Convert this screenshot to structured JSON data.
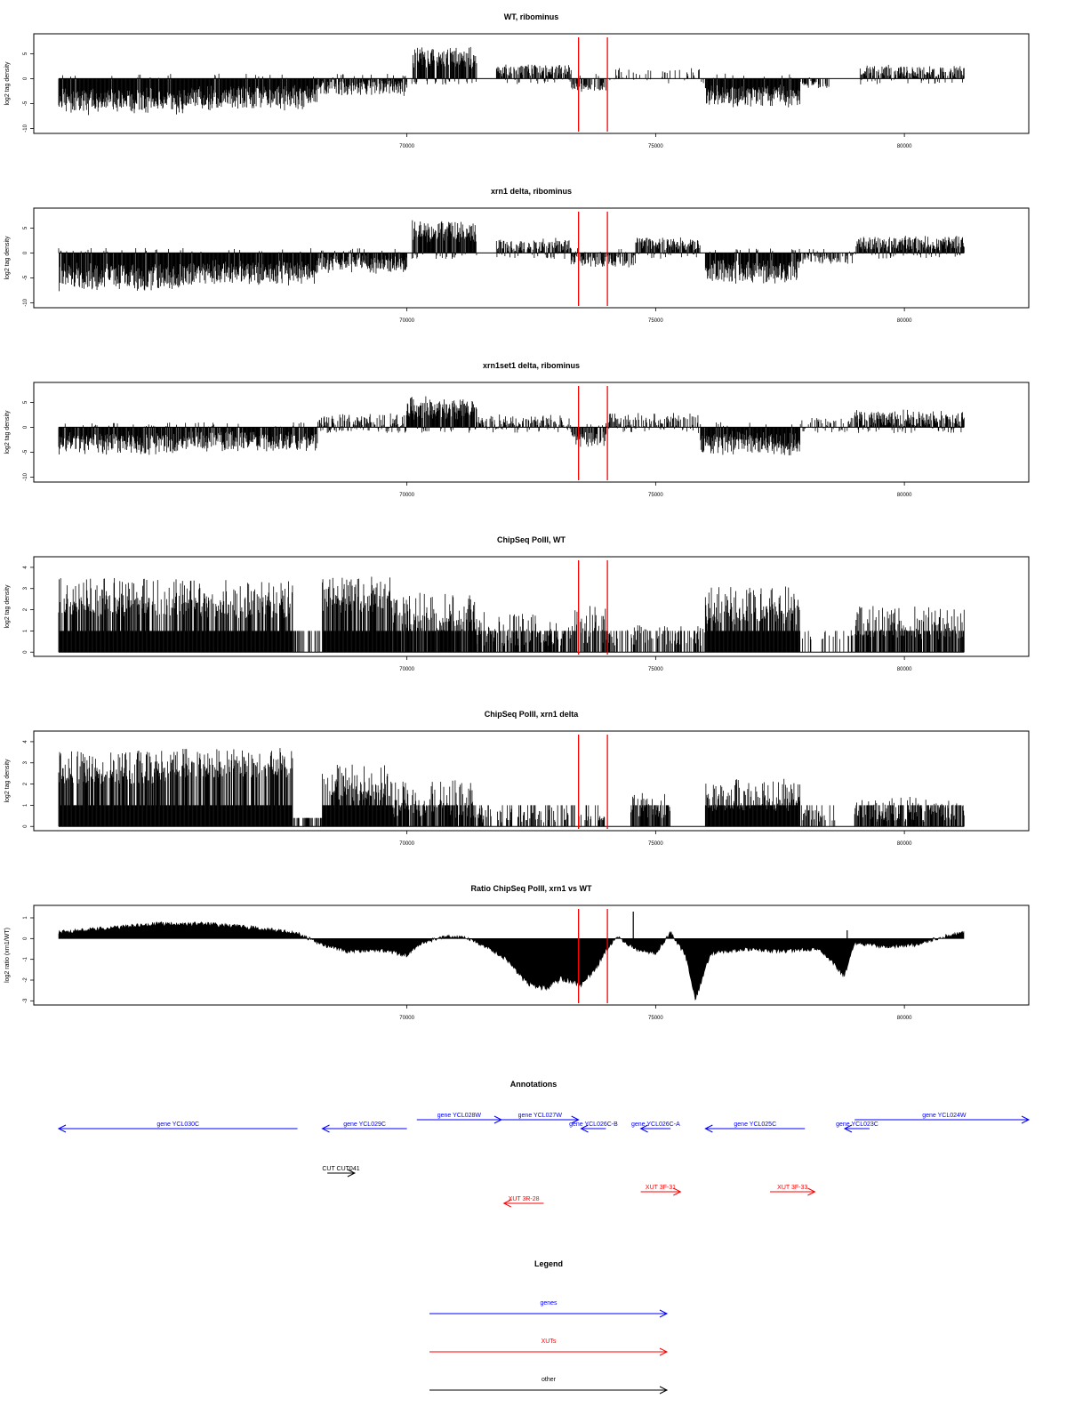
{
  "chart_data": [
    {
      "type": "bar",
      "title": "WT, ribominus",
      "ylabel": "log2 tag density",
      "xlim": [
        62500,
        82500
      ],
      "ylim": [
        -11,
        9
      ],
      "yticks": [
        -10,
        -5,
        0,
        5
      ],
      "xticks": [
        70000,
        75000,
        80000
      ],
      "markers_x": [
        73450,
        74030
      ],
      "segments": [
        {
          "start": 63000,
          "end": 65500,
          "level": -4.5,
          "amp": 3.0,
          "density": 1.0
        },
        {
          "start": 65500,
          "end": 68200,
          "level": -3.8,
          "amp": 2.8,
          "density": 1.0
        },
        {
          "start": 68200,
          "end": 70000,
          "level": -1.8,
          "amp": 1.8,
          "density": 0.85
        },
        {
          "start": 70100,
          "end": 71400,
          "level": 4.2,
          "amp": 2.3,
          "density": 1.0
        },
        {
          "start": 71800,
          "end": 73300,
          "level": 1.7,
          "amp": 1.4,
          "density": 0.8
        },
        {
          "start": 73300,
          "end": 74000,
          "level": -1.8,
          "amp": 1.0,
          "density": 0.6
        },
        {
          "start": 74000,
          "end": 76000,
          "level": 1.0,
          "amp": 1.5,
          "density": 0.25
        },
        {
          "start": 76000,
          "end": 77900,
          "level": -3.6,
          "amp": 2.5,
          "density": 1.0
        },
        {
          "start": 77900,
          "end": 78500,
          "level": -1.2,
          "amp": 0.8,
          "density": 0.5
        },
        {
          "start": 79100,
          "end": 81200,
          "level": 1.4,
          "amp": 1.4,
          "density": 0.75
        }
      ]
    },
    {
      "type": "bar",
      "title": "xrn1 delta, ribominus",
      "ylabel": "log2 tag density",
      "xlim": [
        62500,
        82500
      ],
      "ylim": [
        -11,
        9
      ],
      "yticks": [
        -10,
        -5,
        0,
        5
      ],
      "xticks": [
        70000,
        75000,
        80000
      ],
      "markers_x": [
        73450,
        74030
      ],
      "segments": [
        {
          "start": 63000,
          "end": 65500,
          "level": -4.8,
          "amp": 3.0,
          "density": 1.0
        },
        {
          "start": 65500,
          "end": 68200,
          "level": -4.0,
          "amp": 2.8,
          "density": 1.0
        },
        {
          "start": 68200,
          "end": 70000,
          "level": -2.2,
          "amp": 2.0,
          "density": 0.9
        },
        {
          "start": 70100,
          "end": 71400,
          "level": 4.2,
          "amp": 2.5,
          "density": 1.0
        },
        {
          "start": 71800,
          "end": 73300,
          "level": 1.5,
          "amp": 1.6,
          "density": 0.85
        },
        {
          "start": 73300,
          "end": 74600,
          "level": -1.6,
          "amp": 1.4,
          "density": 0.7
        },
        {
          "start": 74600,
          "end": 75900,
          "level": 1.8,
          "amp": 1.6,
          "density": 0.85
        },
        {
          "start": 76000,
          "end": 77900,
          "level": -3.8,
          "amp": 2.7,
          "density": 1.0
        },
        {
          "start": 77900,
          "end": 79000,
          "level": -1.0,
          "amp": 1.4,
          "density": 0.6
        },
        {
          "start": 79000,
          "end": 81200,
          "level": 1.8,
          "amp": 1.8,
          "density": 0.95
        }
      ]
    },
    {
      "type": "bar",
      "title": "xrn1set1 delta, ribominus",
      "ylabel": "log2 tag density",
      "xlim": [
        62500,
        82500
      ],
      "ylim": [
        -11,
        9
      ],
      "yticks": [
        -10,
        -5,
        0,
        5
      ],
      "xticks": [
        70000,
        75000,
        80000
      ],
      "markers_x": [
        73450,
        74030
      ],
      "segments": [
        {
          "start": 63000,
          "end": 65500,
          "level": -3.2,
          "amp": 2.5,
          "density": 0.95
        },
        {
          "start": 65500,
          "end": 68200,
          "level": -2.8,
          "amp": 2.3,
          "density": 0.9
        },
        {
          "start": 68200,
          "end": 70000,
          "level": 0.8,
          "amp": 2.2,
          "density": 0.7
        },
        {
          "start": 70000,
          "end": 71400,
          "level": 3.8,
          "amp": 2.5,
          "density": 1.0
        },
        {
          "start": 71400,
          "end": 73300,
          "level": 1.0,
          "amp": 1.8,
          "density": 0.7
        },
        {
          "start": 73300,
          "end": 74000,
          "level": -2.5,
          "amp": 1.8,
          "density": 0.8
        },
        {
          "start": 74000,
          "end": 75900,
          "level": 1.2,
          "amp": 1.8,
          "density": 0.7
        },
        {
          "start": 75900,
          "end": 77900,
          "level": -3.2,
          "amp": 2.8,
          "density": 1.0
        },
        {
          "start": 77900,
          "end": 79000,
          "level": 0.6,
          "amp": 1.8,
          "density": 0.55
        },
        {
          "start": 79000,
          "end": 81200,
          "level": 1.6,
          "amp": 2.0,
          "density": 0.95
        }
      ]
    },
    {
      "type": "bar",
      "title": "ChipSeq PolII, WT",
      "ylabel": "log2 tag density",
      "xlim": [
        62500,
        82500
      ],
      "ylim": [
        -0.2,
        4.5
      ],
      "yticks": [
        0,
        1,
        2,
        3,
        4
      ],
      "xticks": [
        70000,
        75000,
        80000
      ],
      "markers_x": [
        73450,
        74030
      ],
      "segments": [
        {
          "start": 63000,
          "end": 65500,
          "level": 2.6,
          "amp": 0.9,
          "density": 1.0
        },
        {
          "start": 65500,
          "end": 67700,
          "level": 2.5,
          "amp": 0.9,
          "density": 1.0
        },
        {
          "start": 67700,
          "end": 68300,
          "level": 1.0,
          "amp": 0.0,
          "density": 0.35
        },
        {
          "start": 68300,
          "end": 69700,
          "level": 2.7,
          "amp": 0.9,
          "density": 1.0
        },
        {
          "start": 69700,
          "end": 71400,
          "level": 1.9,
          "amp": 0.9,
          "density": 0.9
        },
        {
          "start": 71400,
          "end": 73300,
          "level": 1.1,
          "amp": 0.8,
          "density": 0.75
        },
        {
          "start": 73300,
          "end": 74000,
          "level": 1.3,
          "amp": 0.9,
          "density": 0.6
        },
        {
          "start": 74000,
          "end": 76000,
          "level": 0.8,
          "amp": 0.5,
          "density": 0.5
        },
        {
          "start": 76000,
          "end": 77900,
          "level": 2.2,
          "amp": 0.9,
          "density": 1.0
        },
        {
          "start": 77900,
          "end": 79000,
          "level": 0.8,
          "amp": 0.3,
          "density": 0.25
        },
        {
          "start": 79000,
          "end": 81200,
          "level": 1.4,
          "amp": 0.8,
          "density": 0.8
        }
      ]
    },
    {
      "type": "bar",
      "title": "ChipSeq PolII, xrn1 delta",
      "ylabel": "log2 tag density",
      "xlim": [
        62500,
        82500
      ],
      "ylim": [
        -0.2,
        4.5
      ],
      "yticks": [
        0,
        1,
        2,
        3,
        4
      ],
      "xticks": [
        70000,
        75000,
        80000
      ],
      "markers_x": [
        73450,
        74030
      ],
      "segments": [
        {
          "start": 63000,
          "end": 65500,
          "level": 2.8,
          "amp": 0.8,
          "density": 1.0
        },
        {
          "start": 65500,
          "end": 67700,
          "level": 3.0,
          "amp": 0.7,
          "density": 1.0
        },
        {
          "start": 67700,
          "end": 68300,
          "level": 0.4,
          "amp": 0.0,
          "density": 0.5
        },
        {
          "start": 68300,
          "end": 69700,
          "level": 2.1,
          "amp": 0.9,
          "density": 1.0
        },
        {
          "start": 69700,
          "end": 71400,
          "level": 1.3,
          "amp": 0.9,
          "density": 0.85
        },
        {
          "start": 71400,
          "end": 74000,
          "level": 0.5,
          "amp": 0.4,
          "density": 0.4
        },
        {
          "start": 74500,
          "end": 75300,
          "level": 1.0,
          "amp": 0.6,
          "density": 0.8
        },
        {
          "start": 76000,
          "end": 77900,
          "level": 1.5,
          "amp": 0.8,
          "density": 1.0
        },
        {
          "start": 77900,
          "end": 78600,
          "level": 0.5,
          "amp": 0.3,
          "density": 0.5
        },
        {
          "start": 79000,
          "end": 81200,
          "level": 0.8,
          "amp": 0.6,
          "density": 0.8
        }
      ]
    },
    {
      "type": "area",
      "title": "Ratio ChipSeq PolII, xrn1 vs WT",
      "ylabel": "log2 ratio (xrn1/WT)",
      "xlim": [
        62500,
        82500
      ],
      "ylim": [
        -3.2,
        1.6
      ],
      "yticks": [
        -3,
        -2,
        -1,
        0,
        1
      ],
      "xticks": [
        70000,
        75000,
        80000
      ],
      "markers_x": [
        73450,
        74030
      ],
      "profile": [
        [
          63000,
          0.3
        ],
        [
          64000,
          0.5
        ],
        [
          65000,
          0.7
        ],
        [
          66000,
          0.7
        ],
        [
          67000,
          0.5
        ],
        [
          67800,
          0.25
        ],
        [
          68300,
          -0.3
        ],
        [
          68800,
          -0.6
        ],
        [
          69500,
          -0.55
        ],
        [
          70000,
          -0.8
        ],
        [
          70300,
          -0.2
        ],
        [
          70800,
          0.1
        ],
        [
          71200,
          0.05
        ],
        [
          71600,
          -0.4
        ],
        [
          72000,
          -1.0
        ],
        [
          72400,
          -2.1
        ],
        [
          72800,
          -2.4
        ],
        [
          73100,
          -1.9
        ],
        [
          73500,
          -2.2
        ],
        [
          73800,
          -1.4
        ],
        [
          74000,
          -0.6
        ],
        [
          74200,
          0.1
        ],
        [
          74600,
          -0.5
        ],
        [
          75000,
          -0.7
        ],
        [
          75300,
          0.3
        ],
        [
          75600,
          -0.8
        ],
        [
          75800,
          -2.9
        ],
        [
          76100,
          -0.7
        ],
        [
          76800,
          -0.5
        ],
        [
          77500,
          -0.6
        ],
        [
          78300,
          -0.5
        ],
        [
          78800,
          -1.8
        ],
        [
          79000,
          -0.2
        ],
        [
          79600,
          -0.4
        ],
        [
          80200,
          -0.3
        ],
        [
          80800,
          0.1
        ],
        [
          81200,
          0.3
        ]
      ],
      "spikes": [
        [
          74550,
          1.3
        ],
        [
          78850,
          0.4
        ]
      ]
    }
  ],
  "annotations": {
    "title": "Annotations",
    "xlim": [
      62500,
      82500
    ],
    "features": [
      {
        "label": "gene YCL030C",
        "class": "gene",
        "start": 63000,
        "end": 67800,
        "strand": "-",
        "row": 1
      },
      {
        "label": "gene YCL029C",
        "class": "gene",
        "start": 68300,
        "end": 70000,
        "strand": "-",
        "row": 1
      },
      {
        "label": "gene YCL028W",
        "class": "gene",
        "start": 70200,
        "end": 71900,
        "strand": "+",
        "row": 0
      },
      {
        "label": "gene YCL027W",
        "class": "gene",
        "start": 71900,
        "end": 73450,
        "strand": "+",
        "row": 0
      },
      {
        "label": "gene YCL026C-B",
        "class": "gene",
        "start": 73500,
        "end": 74000,
        "strand": "-",
        "row": 1
      },
      {
        "label": "gene YCL026C-A",
        "class": "gene",
        "start": 74700,
        "end": 75300,
        "strand": "-",
        "row": 1
      },
      {
        "label": "gene YCL025C",
        "class": "gene",
        "start": 76000,
        "end": 78000,
        "strand": "-",
        "row": 1
      },
      {
        "label": "gene YCL023C",
        "class": "gene",
        "start": 78800,
        "end": 79300,
        "strand": "-",
        "row": 1
      },
      {
        "label": "gene YCL024W",
        "class": "gene",
        "start": 79000,
        "end": 82500,
        "strand": "+",
        "row": 0
      },
      {
        "label": "CUT CUT041",
        "class": "other",
        "start": 68400,
        "end": 68950,
        "strand": "+",
        "row": 2
      },
      {
        "label": "XUT 3R-28",
        "class": "xut",
        "start": 71950,
        "end": 72750,
        "strand": "-",
        "row": 4
      },
      {
        "label": "XUT 3F-31",
        "class": "xut",
        "start": 74700,
        "end": 75500,
        "strand": "+",
        "row": 3
      },
      {
        "label": "XUT 3F-33",
        "class": "xut",
        "start": 77300,
        "end": 78200,
        "strand": "+",
        "row": 3
      }
    ]
  },
  "legend": {
    "title": "Legend",
    "items": [
      {
        "label": "genes",
        "class": "gene"
      },
      {
        "label": "XUTs",
        "class": "xut"
      },
      {
        "label": "other",
        "class": "other"
      }
    ]
  },
  "colors": {
    "bars": "#000000",
    "markers": "#ff0000",
    "gene": "#0000ff",
    "xut": "#ff0000",
    "other": "#000000"
  }
}
